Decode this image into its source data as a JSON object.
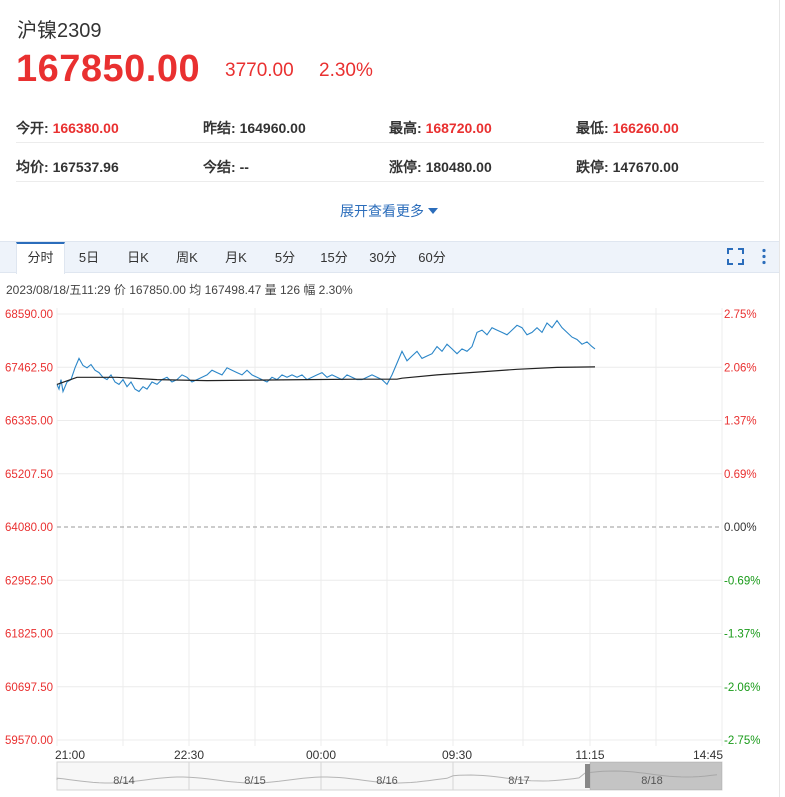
{
  "header": {
    "title": "沪镍2309",
    "price": "167850.00",
    "change": "3770.00",
    "change_pct": "2.30%"
  },
  "stats": {
    "row1": [
      {
        "label": "今开:",
        "value": "166380.00",
        "up": true
      },
      {
        "label": "昨结:",
        "value": "164960.00",
        "up": false
      },
      {
        "label": "最高:",
        "value": "168720.00",
        "up": true
      },
      {
        "label": "最低:",
        "value": "166260.00",
        "up": true
      }
    ],
    "row2": [
      {
        "label": "均价:",
        "value": "167537.96",
        "up": false
      },
      {
        "label": "今结:",
        "value": "--",
        "up": false
      },
      {
        "label": "涨停:",
        "value": "180480.00",
        "up": false
      },
      {
        "label": "跌停:",
        "value": "147670.00",
        "up": false
      }
    ]
  },
  "expand_label": "展开查看更多",
  "tabs": [
    "分时",
    "5日",
    "日K",
    "周K",
    "月K",
    "5分",
    "15分",
    "30分",
    "60分"
  ],
  "active_tab": "分时",
  "info_line": "2023/08/18/五11:29  价 167850.00  均 167498.47  量 126  幅 2.30%",
  "colors": {
    "up": "#e93030",
    "down": "#1a9b1a",
    "price_line": "#2b86c8",
    "avg_line": "#222222",
    "accent": "#2b6dbb"
  },
  "chart_data": {
    "type": "line",
    "y_left_ticks": [
      "68590.00",
      "67462.50",
      "66335.00",
      "65207.50",
      "64080.00",
      "62952.50",
      "61825.00",
      "60697.50",
      "59570.00"
    ],
    "y_right_ticks": [
      "2.75%",
      "2.06%",
      "1.37%",
      "0.69%",
      "0.00%",
      "-0.69%",
      "-1.37%",
      "-2.06%",
      "-2.75%"
    ],
    "ylim": [
      59570.0,
      68590.0
    ],
    "x_ticks": [
      "21:00",
      "22:30",
      "00:00",
      "09:30",
      "11:15",
      "14:45"
    ],
    "baseline": 64080.0,
    "series": [
      {
        "role": "price",
        "x": [
          0,
          2,
          4,
          6,
          10,
          14,
          18,
          22,
          26,
          30,
          34,
          38,
          42,
          46,
          50,
          54,
          58,
          62,
          66,
          70,
          74,
          78,
          82,
          86,
          90,
          95,
          100,
          105,
          110,
          115,
          120,
          125,
          130,
          135,
          140,
          145,
          150,
          155,
          160,
          165,
          170,
          175,
          180,
          185,
          190,
          195,
          200,
          205,
          210,
          215,
          220,
          225,
          230,
          235,
          240,
          245,
          250,
          255,
          260,
          265,
          270,
          275,
          280,
          285,
          290,
          295,
          300,
          305,
          310,
          315,
          320,
          325,
          330,
          335,
          340,
          345,
          350,
          355,
          360,
          365,
          370,
          375,
          380,
          385,
          390,
          395,
          400,
          405,
          410,
          415,
          420,
          425,
          430,
          435,
          440,
          445,
          450,
          455,
          460,
          465,
          470,
          475,
          480,
          485,
          490,
          495,
          500,
          505,
          510,
          515,
          520,
          525,
          530,
          535,
          538
        ],
        "y": [
          67100,
          67000,
          67200,
          66950,
          67150,
          67200,
          67450,
          67650,
          67500,
          67450,
          67520,
          67400,
          67350,
          67250,
          67200,
          67300,
          67150,
          67100,
          67200,
          67050,
          67150,
          67000,
          66950,
          67050,
          67000,
          67150,
          67100,
          67200,
          67250,
          67150,
          67200,
          67300,
          67250,
          67150,
          67200,
          67250,
          67300,
          67400,
          67350,
          67300,
          67450,
          67400,
          67350,
          67300,
          67400,
          67300,
          67250,
          67200,
          67150,
          67250,
          67200,
          67300,
          67250,
          67300,
          67250,
          67300,
          67200,
          67250,
          67300,
          67350,
          67250,
          67300,
          67250,
          67200,
          67300,
          67250,
          67200,
          67200,
          67250,
          67300,
          67250,
          67200,
          67100,
          67300,
          67550,
          67800,
          67600,
          67700,
          67800,
          67650,
          67700,
          67750,
          67900,
          67800,
          67950,
          67850,
          67750,
          67850,
          67800,
          67900,
          68200,
          68250,
          68150,
          68300,
          68250,
          68200,
          68150,
          68250,
          68350,
          68300,
          68150,
          68200,
          68300,
          68200,
          68400,
          68300,
          68450,
          68300,
          68200,
          68100,
          68050,
          67950,
          68000,
          67900,
          67850
        ]
      },
      {
        "role": "avg",
        "x": [
          0,
          20,
          60,
          100,
          150,
          200,
          250,
          300,
          340,
          345,
          380,
          420,
          460,
          500,
          538
        ],
        "y": [
          67100,
          67250,
          67250,
          67200,
          67180,
          67190,
          67200,
          67210,
          67210,
          67230,
          67300,
          67360,
          67420,
          67460,
          67470
        ]
      }
    ]
  },
  "navigator": {
    "labels": [
      "8/14",
      "8/15",
      "8/16",
      "8/17",
      "8/18"
    ]
  }
}
